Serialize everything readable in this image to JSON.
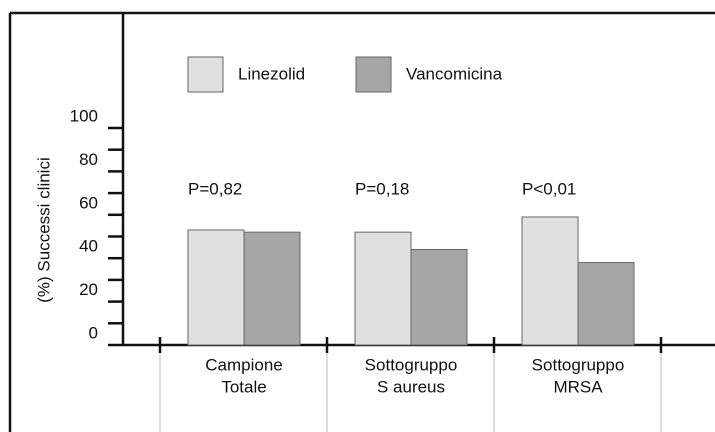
{
  "chart_data": {
    "type": "bar",
    "y_label": "(%) Successi clinici",
    "categories": [
      [
        "Campione",
        "Totale"
      ],
      [
        "Sottogruppo",
        "S aureus"
      ],
      [
        "Sottogruppo",
        "MRSA"
      ]
    ],
    "series": [
      {
        "name": "Linezolid",
        "color": "#e0e0e0",
        "values": [
          53,
          52,
          59
        ]
      },
      {
        "name": "Vancomicina",
        "color": "#a6a6a6",
        "values": [
          52,
          44,
          38
        ]
      }
    ],
    "annotations": [
      "P=0,82",
      "P=0,18",
      "P<0,01"
    ],
    "ylim": [
      0,
      100
    ],
    "yticks": [
      0,
      20,
      40,
      60,
      80,
      100
    ]
  }
}
